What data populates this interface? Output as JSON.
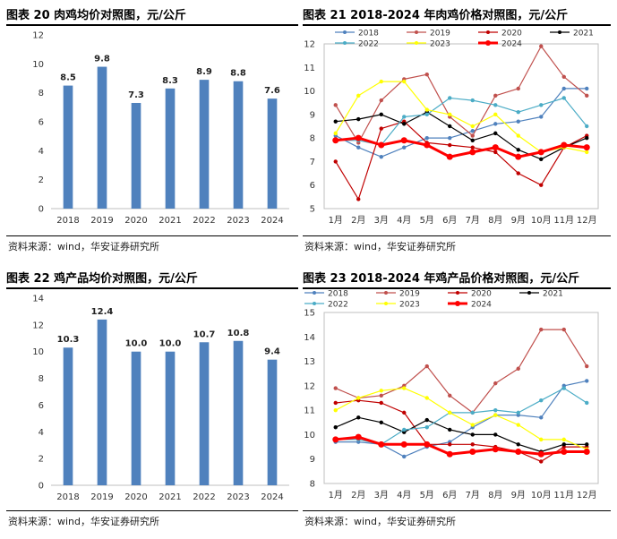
{
  "panels": [
    {
      "title": "图表 20 肉鸡均价对照图，元/公斤",
      "source": "资料来源：wind，华安证券研究所",
      "chart_data": {
        "type": "bar",
        "categories": [
          "2018",
          "2019",
          "2020",
          "2021",
          "2022",
          "2023",
          "2024"
        ],
        "values": [
          8.5,
          9.8,
          7.3,
          8.3,
          8.9,
          8.8,
          7.6
        ],
        "value_labels": [
          "8.5",
          "9.8",
          "7.3",
          "8.3",
          "8.9",
          "8.8",
          "7.6"
        ],
        "ylim": [
          0,
          12
        ],
        "yticks": [
          "0",
          "2",
          "4",
          "6",
          "8",
          "10",
          "12"
        ],
        "bar_color": "#4f81bd"
      }
    },
    {
      "title": "图表 21 2018-2024 年肉鸡价格对照图，元/公斤",
      "source": "资料来源：wind，华安证券研究所",
      "chart_data": {
        "type": "line",
        "categories": [
          "1月",
          "2月",
          "3月",
          "4月",
          "5月",
          "6月",
          "7月",
          "8月",
          "9月",
          "10月",
          "11月",
          "12月"
        ],
        "ylim": [
          5,
          12
        ],
        "yticks": [
          "5",
          "6",
          "7",
          "8",
          "9",
          "10",
          "11",
          "12"
        ],
        "legend_position": "top",
        "series": [
          {
            "name": "2018",
            "color": "#4f81bd",
            "width": 1.2,
            "values": [
              8.1,
              7.6,
              7.2,
              7.6,
              8.0,
              8.0,
              8.3,
              8.6,
              8.7,
              8.9,
              10.1,
              10.1
            ]
          },
          {
            "name": "2019",
            "color": "#c0504d",
            "width": 1.2,
            "values": [
              9.4,
              7.8,
              9.6,
              10.5,
              10.7,
              8.9,
              8.1,
              9.8,
              10.1,
              11.9,
              10.6,
              9.8
            ]
          },
          {
            "name": "2020",
            "color": "#c00000",
            "width": 1.2,
            "values": [
              7.0,
              5.4,
              8.4,
              8.7,
              7.8,
              7.7,
              7.6,
              7.4,
              6.5,
              6.0,
              7.6,
              8.1
            ]
          },
          {
            "name": "2021",
            "color": "#000000",
            "width": 1.2,
            "values": [
              8.7,
              8.8,
              9.0,
              8.6,
              9.1,
              8.5,
              7.9,
              8.2,
              7.5,
              7.1,
              7.6,
              8.0
            ]
          },
          {
            "name": "2022",
            "color": "#4bacc6",
            "width": 1.2,
            "values": [
              7.9,
              7.9,
              7.7,
              8.9,
              9.0,
              9.7,
              9.6,
              9.4,
              9.1,
              9.4,
              9.7,
              8.5
            ]
          },
          {
            "name": "2023",
            "color": "#ffff00",
            "width": 1.2,
            "values": [
              8.2,
              9.8,
              10.4,
              10.4,
              9.2,
              9.0,
              8.5,
              9.0,
              8.1,
              7.4,
              7.6,
              7.4
            ]
          },
          {
            "name": "2024",
            "color": "#ff0000",
            "width": 3,
            "values": [
              7.9,
              8.0,
              7.7,
              7.9,
              7.7,
              7.2,
              7.4,
              7.6,
              7.2,
              7.4,
              7.7,
              7.6
            ]
          }
        ]
      }
    },
    {
      "title": "图表 22 鸡产品均价对照图，元/公斤",
      "source": "资料来源：wind，华安证券研究所",
      "chart_data": {
        "type": "bar",
        "categories": [
          "2018",
          "2019",
          "2020",
          "2021",
          "2022",
          "2023",
          "2024"
        ],
        "values": [
          10.3,
          12.4,
          10.0,
          10.0,
          10.7,
          10.8,
          9.4
        ],
        "value_labels": [
          "10.3",
          "12.4",
          "10.0",
          "10.0",
          "10.7",
          "10.8",
          "9.4"
        ],
        "ylim": [
          0,
          14
        ],
        "yticks": [
          "0",
          "2",
          "4",
          "6",
          "8",
          "10",
          "12",
          "14"
        ],
        "bar_color": "#4f81bd"
      }
    },
    {
      "title": "图表 23 2018-2024 年鸡产品价格对照图，元/公斤",
      "source": "资料来源：wind，华安证券研究所",
      "chart_data": {
        "type": "line",
        "categories": [
          "1月",
          "2月",
          "3月",
          "4月",
          "5月",
          "6月",
          "7月",
          "8月",
          "9月",
          "10月",
          "11月",
          "12月"
        ],
        "ylim": [
          8,
          15
        ],
        "yticks": [
          "8",
          "9",
          "10",
          "11",
          "12",
          "13",
          "14",
          "15"
        ],
        "legend_position": "top",
        "series": [
          {
            "name": "2018",
            "color": "#4f81bd",
            "width": 1.2,
            "values": [
              9.7,
              9.7,
              9.6,
              9.1,
              9.5,
              9.7,
              10.3,
              10.8,
              10.8,
              10.7,
              12.0,
              12.2
            ]
          },
          {
            "name": "2019",
            "color": "#c0504d",
            "width": 1.2,
            "values": [
              11.9,
              11.5,
              11.6,
              12.0,
              12.8,
              11.6,
              10.9,
              12.1,
              12.7,
              14.3,
              14.3,
              12.8
            ]
          },
          {
            "name": "2020",
            "color": "#c00000",
            "width": 1.2,
            "values": [
              11.3,
              11.4,
              11.3,
              10.9,
              9.6,
              9.6,
              9.6,
              9.5,
              9.3,
              8.9,
              9.5,
              9.5
            ]
          },
          {
            "name": "2021",
            "color": "#000000",
            "width": 1.2,
            "values": [
              10.3,
              10.7,
              10.5,
              10.1,
              10.6,
              10.2,
              10.0,
              10.0,
              9.6,
              9.3,
              9.6,
              9.6
            ]
          },
          {
            "name": "2022",
            "color": "#4bacc6",
            "width": 1.2,
            "values": [
              9.8,
              9.8,
              9.6,
              10.2,
              10.3,
              10.9,
              10.9,
              11.0,
              10.9,
              11.4,
              11.9,
              11.3
            ]
          },
          {
            "name": "2023",
            "color": "#ffff00",
            "width": 1.2,
            "values": [
              11.0,
              11.5,
              11.8,
              11.9,
              11.5,
              10.9,
              10.4,
              10.8,
              10.4,
              9.8,
              9.8,
              9.4
            ]
          },
          {
            "name": "2024",
            "color": "#ff0000",
            "width": 3,
            "values": [
              9.8,
              9.9,
              9.6,
              9.6,
              9.6,
              9.2,
              9.3,
              9.4,
              9.3,
              9.2,
              9.3,
              9.3
            ]
          }
        ]
      }
    }
  ]
}
